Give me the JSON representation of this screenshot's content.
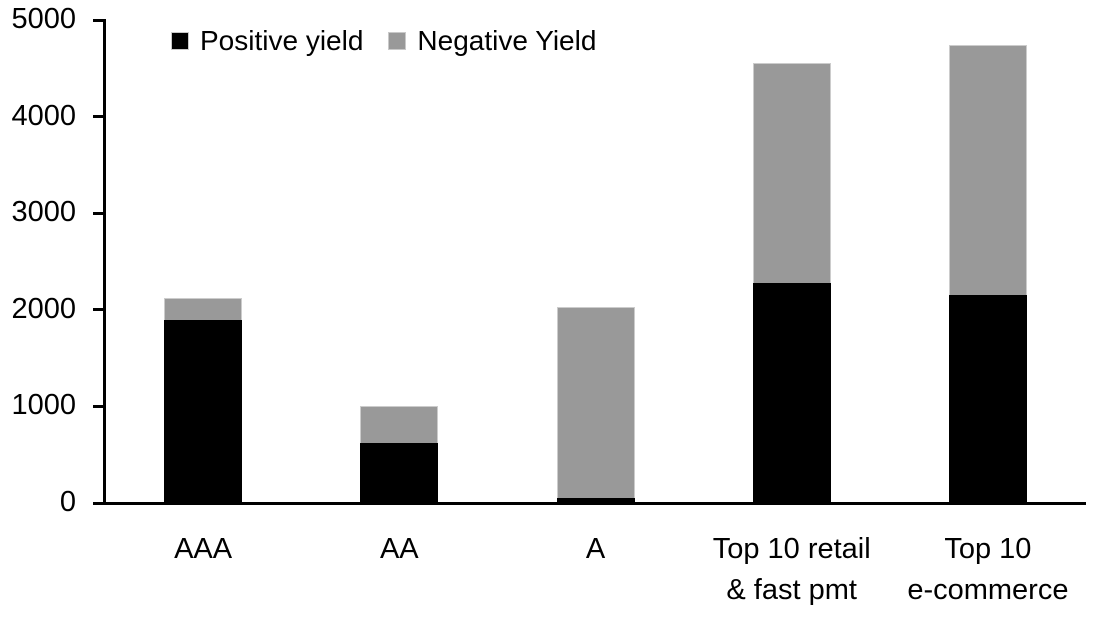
{
  "chart_data": {
    "type": "bar",
    "stacked": true,
    "title": "",
    "xlabel": "",
    "ylabel": "",
    "categories": [
      "AAA",
      "AA",
      "A",
      "Top 10 retail\n& fast pmt",
      "Top 10\ne-commerce"
    ],
    "series": [
      {
        "name": "Positive yield",
        "color": "#000000",
        "values": [
          1890,
          620,
          50,
          2280,
          2150
        ]
      },
      {
        "name": "Negative Yield",
        "color": "#999999",
        "values": [
          235,
          385,
          1980,
          2270,
          2590
        ]
      }
    ],
    "totals": [
      2125,
      1005,
      2030,
      4550,
      4740
    ],
    "ylim": [
      0,
      5000
    ],
    "yticks": [
      0,
      1000,
      2000,
      3000,
      4000,
      5000
    ],
    "legend_position": "top-left",
    "grid": false,
    "axis_color": "#000000",
    "background_color": "#ffffff"
  }
}
